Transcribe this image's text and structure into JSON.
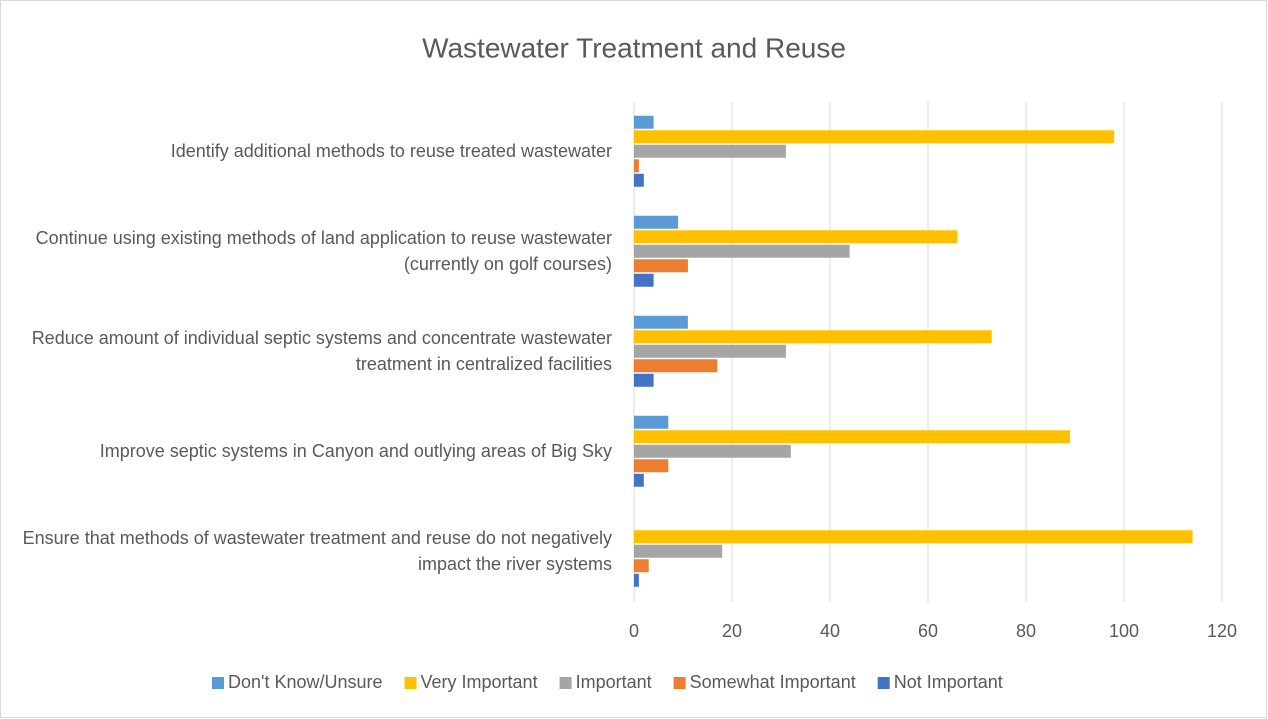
{
  "chart_data": {
    "type": "barh",
    "title": "Wastewater Treatment and Reuse",
    "categories": [
      "Identify additional methods to reuse treated wastewater",
      "Continue using existing methods of land application to reuse wastewater (currently on golf courses)",
      "Reduce amount of individual septic systems and concentrate wastewater treatment in centralized facilities",
      "Improve septic systems in Canyon and outlying areas of Big Sky",
      "Ensure that methods of wastewater treatment and reuse do not negatively impact the river systems"
    ],
    "series": [
      {
        "name": "Don't Know/Unsure",
        "color": "#5b9bd5",
        "values": [
          4,
          9,
          11,
          7,
          0
        ]
      },
      {
        "name": "Very Important",
        "color": "#ffc000",
        "values": [
          98,
          66,
          73,
          89,
          114
        ]
      },
      {
        "name": "Important",
        "color": "#a5a5a5",
        "values": [
          31,
          44,
          31,
          32,
          18
        ]
      },
      {
        "name": "Somewhat Important",
        "color": "#ed7d31",
        "values": [
          1,
          11,
          17,
          7,
          3
        ]
      },
      {
        "name": "Not Important",
        "color": "#4472c4",
        "values": [
          2,
          4,
          4,
          2,
          1
        ]
      }
    ],
    "xlim": [
      0,
      120
    ],
    "xticks": [
      0,
      20,
      40,
      60,
      80,
      100,
      120
    ],
    "grid": true,
    "legend": "bottom"
  }
}
